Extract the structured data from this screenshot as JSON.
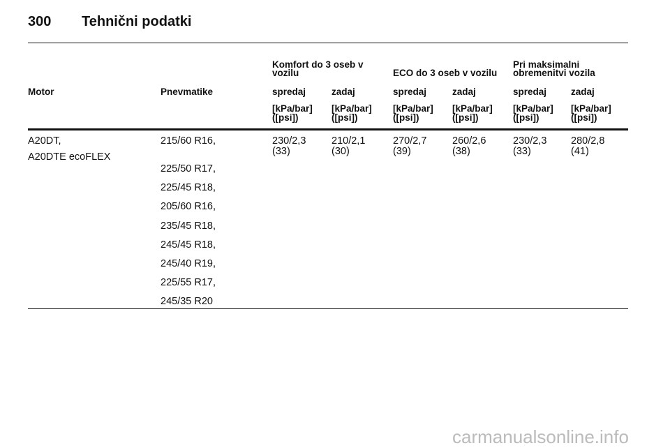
{
  "header": {
    "page_number": "300",
    "title": "Tehnični podatki"
  },
  "table": {
    "group_headers": [
      [
        "Komfort do 3 oseb v",
        "vozilu"
      ],
      [
        "ECO do 3 oseb v vozilu"
      ],
      [
        "Pri maksimalni",
        "obremenitvi vozila"
      ]
    ],
    "columns": [
      "Motor",
      "Pnevmatike",
      "spredaj",
      "zadaj",
      "spredaj",
      "zadaj",
      "spredaj",
      "zadaj"
    ],
    "units": [
      [
        "[kPa/bar]",
        "([psi])"
      ],
      [
        "[kPa/bar]",
        "([psi])"
      ],
      [
        "[kPa/bar]",
        "([psi])"
      ],
      [
        "[kPa/bar]",
        "([psi])"
      ],
      [
        "[kPa/bar]",
        "([psi])"
      ],
      [
        "[kPa/bar]",
        "([psi])"
      ]
    ],
    "rows": [
      {
        "motor": [
          "A20DT,",
          "A20DTE ecoFLEX"
        ],
        "tyres": [
          "215/60 R16,",
          "225/50 R17,",
          "225/45 R18,",
          "205/60 R16,",
          "235/45 R18,",
          "245/45 R18,",
          "245/40 R19,",
          "225/55 R17,",
          "245/35 R20"
        ],
        "values": [
          [
            "230/2,3",
            "(33)"
          ],
          [
            "210/2,1",
            "(30)"
          ],
          [
            "270/2,7",
            "(39)"
          ],
          [
            "260/2,6",
            "(38)"
          ],
          [
            "230/2,3",
            "(33)"
          ],
          [
            "280/2,8",
            "(41)"
          ]
        ]
      }
    ]
  },
  "watermark": "carmanualsonline.info"
}
